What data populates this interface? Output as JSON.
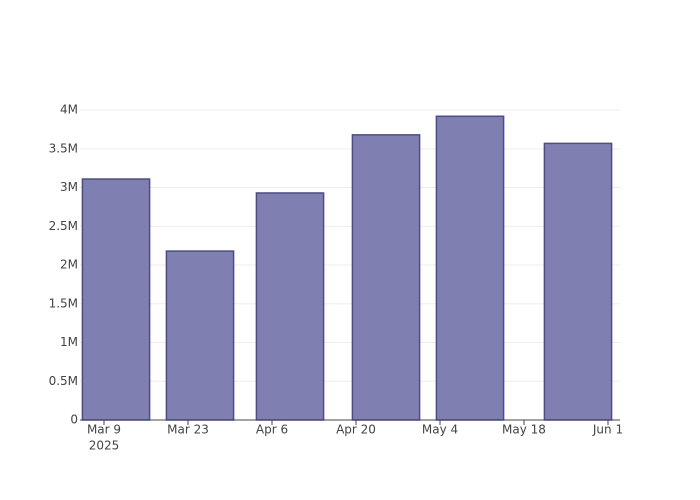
{
  "chart_data": {
    "type": "bar",
    "x": [
      "2025-03-11",
      "2025-03-25",
      "2025-04-09",
      "2025-04-25",
      "2025-05-09",
      "2025-05-27"
    ],
    "values": [
      3110000,
      2180000,
      2930000,
      3680000,
      3920000,
      3570000
    ],
    "color": "#7f7fb2",
    "edge_color": "#4b4b8e",
    "bar_width_days": 11.2,
    "xlim": [
      "2025-03-05",
      "2025-06-03"
    ],
    "xticks": [
      {
        "value": "2025-03-09",
        "label": "Mar 9",
        "year": "2025"
      },
      {
        "value": "2025-03-23",
        "label": "Mar 23"
      },
      {
        "value": "2025-04-06",
        "label": "Apr 6"
      },
      {
        "value": "2025-04-20",
        "label": "Apr 20"
      },
      {
        "value": "2025-05-04",
        "label": "May 4"
      },
      {
        "value": "2025-05-18",
        "label": "May 18"
      },
      {
        "value": "2025-06-01",
        "label": "Jun 1"
      }
    ],
    "ylim": [
      0,
      4130000
    ],
    "yticks": [
      0,
      {
        "value": 500000,
        "label": "0.5M"
      },
      {
        "value": 1000000,
        "label": "1M"
      },
      {
        "value": 1500000,
        "label": "1.5M"
      },
      {
        "value": 2000000,
        "label": "2M"
      },
      {
        "value": 2500000,
        "label": "2.5M"
      },
      {
        "value": 3000000,
        "label": "3M"
      },
      {
        "value": 3500000,
        "label": "3.5M"
      },
      {
        "value": 4000000,
        "label": "4M"
      }
    ],
    "grid": true
  }
}
